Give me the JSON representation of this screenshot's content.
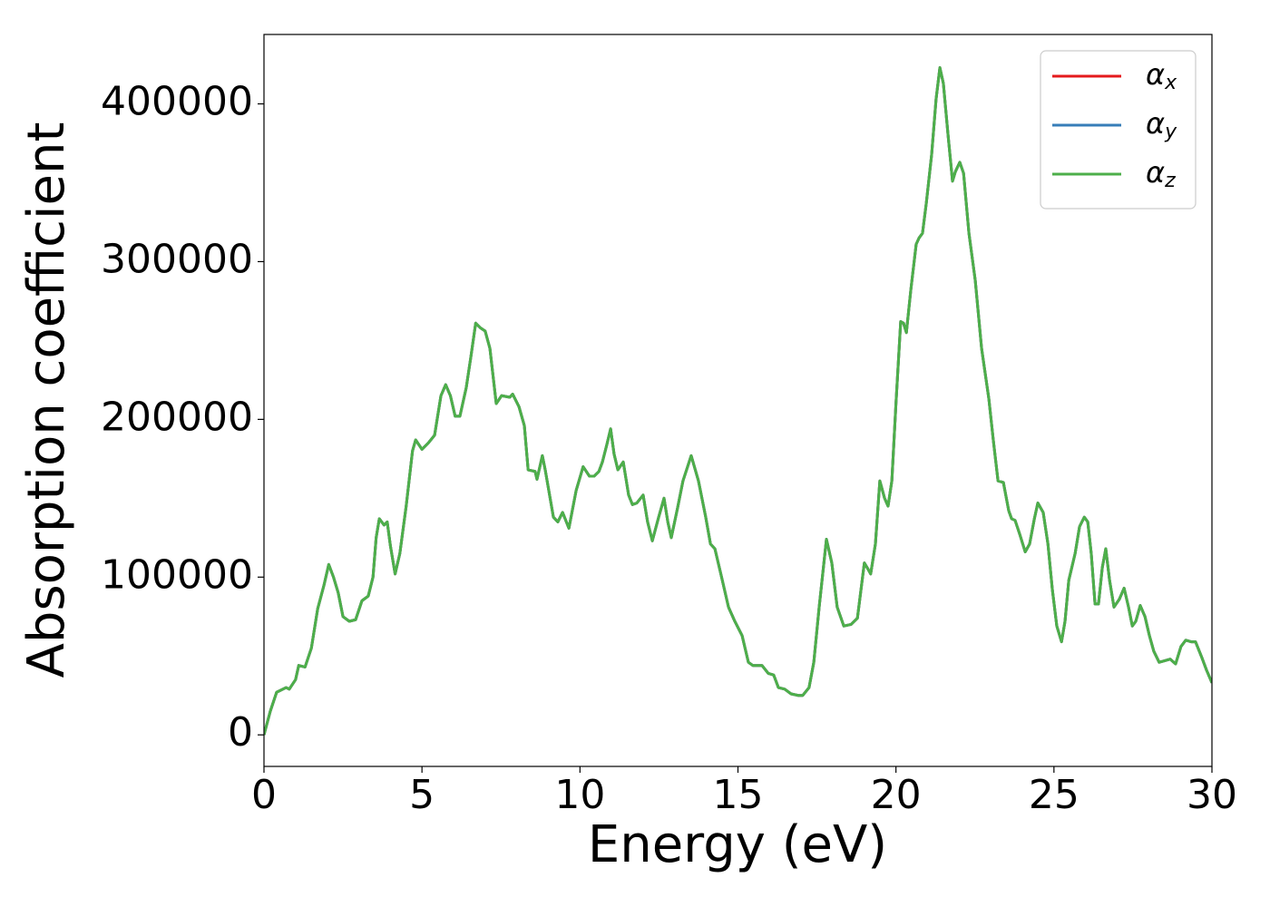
{
  "chart_data": {
    "type": "line",
    "x_label": "Energy (eV)",
    "y_label": "Absorption coefficient",
    "xlim": [
      0,
      30
    ],
    "ylim": [
      -20000,
      444000
    ],
    "xticks": [
      0,
      5,
      10,
      15,
      20,
      25,
      30
    ],
    "yticks": [
      0,
      100000,
      200000,
      300000,
      400000
    ],
    "legend": "upper right",
    "grid": false,
    "x": [
      0,
      0.2,
      0.4,
      0.7,
      0.8,
      1.0,
      1.1,
      1.3,
      1.5,
      1.7,
      1.9,
      2.05,
      2.2,
      2.35,
      2.5,
      2.7,
      2.9,
      3.1,
      3.3,
      3.45,
      3.55,
      3.65,
      3.8,
      3.9,
      4.0,
      4.15,
      4.3,
      4.5,
      4.7,
      4.8,
      5.0,
      5.2,
      5.4,
      5.6,
      5.75,
      5.9,
      6.05,
      6.2,
      6.4,
      6.55,
      6.7,
      6.85,
      7.0,
      7.15,
      7.35,
      7.52,
      7.78,
      7.87,
      8.07,
      8.24,
      8.36,
      8.58,
      8.64,
      8.81,
      8.9,
      9.16,
      9.3,
      9.45,
      9.65,
      9.88,
      10.1,
      10.3,
      10.45,
      10.6,
      10.71,
      10.85,
      10.97,
      11.08,
      11.2,
      11.37,
      11.54,
      11.66,
      11.8,
      12.0,
      12.14,
      12.29,
      12.49,
      12.66,
      12.78,
      12.89,
      13.09,
      13.26,
      13.52,
      13.75,
      13.98,
      14.13,
      14.27,
      14.47,
      14.7,
      14.9,
      15.13,
      15.33,
      15.47,
      15.76,
      15.96,
      16.13,
      16.28,
      16.48,
      16.68,
      16.91,
      17.05,
      17.25,
      17.4,
      17.57,
      17.8,
      17.97,
      18.14,
      18.35,
      18.58,
      18.78,
      19.0,
      19.09,
      19.2,
      19.35,
      19.49,
      19.64,
      19.75,
      19.87,
      20.0,
      20.15,
      20.24,
      20.33,
      20.47,
      20.64,
      20.73,
      20.84,
      20.96,
      21.13,
      21.27,
      21.39,
      21.5,
      21.65,
      21.79,
      21.88,
      22.02,
      22.14,
      22.31,
      22.51,
      22.71,
      22.94,
      23.08,
      23.23,
      23.4,
      23.57,
      23.66,
      23.77,
      23.92,
      24.09,
      24.23,
      24.38,
      24.49,
      24.66,
      24.81,
      24.95,
      25.09,
      25.24,
      25.35,
      25.47,
      25.67,
      25.81,
      25.96,
      26.07,
      26.18,
      26.3,
      26.41,
      26.53,
      26.64,
      26.76,
      26.9,
      27.07,
      27.22,
      27.36,
      27.48,
      27.59,
      27.73,
      27.88,
      28.02,
      28.16,
      28.33,
      28.51,
      28.68,
      28.85,
      29.02,
      29.17,
      29.34,
      29.48,
      29.68,
      29.83,
      30.0
    ],
    "series": [
      {
        "name": "αx",
        "color": "#e41a1c",
        "values": [
          0,
          15000,
          27000,
          30000,
          29000,
          35000,
          44000,
          43000,
          55000,
          80000,
          95000,
          108000,
          100000,
          90000,
          75000,
          72000,
          73000,
          85000,
          88000,
          100000,
          125000,
          137000,
          133000,
          135000,
          120000,
          102000,
          115000,
          145000,
          180000,
          187000,
          181000,
          185000,
          190000,
          215000,
          222000,
          215000,
          202000,
          202000,
          220000,
          240000,
          261000,
          258000,
          256000,
          245000,
          210000,
          215000,
          214000,
          216000,
          208000,
          196000,
          168000,
          167000,
          162000,
          177000,
          168000,
          138000,
          135000,
          141000,
          131000,
          155000,
          170000,
          164000,
          164000,
          167000,
          173000,
          184000,
          194000,
          178000,
          168000,
          173000,
          152000,
          146000,
          147000,
          152000,
          135000,
          123000,
          138000,
          150000,
          135000,
          125000,
          144000,
          161000,
          177000,
          161000,
          138000,
          121000,
          118000,
          101000,
          81000,
          72000,
          63000,
          46000,
          44000,
          44000,
          39000,
          38000,
          30000,
          29000,
          26000,
          25000,
          25000,
          30000,
          46000,
          81000,
          124000,
          109000,
          81000,
          69000,
          70000,
          74000,
          109000,
          106000,
          102000,
          121000,
          161000,
          150000,
          145000,
          161000,
          210000,
          262000,
          261000,
          255000,
          282000,
          311000,
          315000,
          318000,
          337000,
          368000,
          403000,
          423000,
          413000,
          380000,
          351000,
          357000,
          363000,
          356000,
          318000,
          288000,
          245000,
          213000,
          187000,
          161000,
          160000,
          142000,
          137000,
          136000,
          127000,
          116000,
          121000,
          137000,
          147000,
          141000,
          121000,
          92000,
          69000,
          59000,
          72000,
          98000,
          115000,
          132000,
          138000,
          135000,
          115000,
          83000,
          83000,
          106000,
          118000,
          98000,
          81000,
          86000,
          93000,
          81000,
          69000,
          72000,
          82000,
          75000,
          63000,
          53000,
          46000,
          47000,
          48000,
          45000,
          56000,
          60000,
          59000,
          59000,
          49000,
          41000,
          33000
        ]
      },
      {
        "name": "αy",
        "color": "#377eb8",
        "values": [
          0,
          15000,
          27000,
          30000,
          29000,
          35000,
          44000,
          43000,
          55000,
          80000,
          95000,
          108000,
          100000,
          90000,
          75000,
          72000,
          73000,
          85000,
          88000,
          100000,
          125000,
          137000,
          133000,
          135000,
          120000,
          102000,
          115000,
          145000,
          180000,
          187000,
          181000,
          185000,
          190000,
          215000,
          222000,
          215000,
          202000,
          202000,
          220000,
          240000,
          261000,
          258000,
          256000,
          245000,
          210000,
          215000,
          214000,
          216000,
          208000,
          196000,
          168000,
          167000,
          162000,
          177000,
          168000,
          138000,
          135000,
          141000,
          131000,
          155000,
          170000,
          164000,
          164000,
          167000,
          173000,
          184000,
          194000,
          178000,
          168000,
          173000,
          152000,
          146000,
          147000,
          152000,
          135000,
          123000,
          138000,
          150000,
          135000,
          125000,
          144000,
          161000,
          177000,
          161000,
          138000,
          121000,
          118000,
          101000,
          81000,
          72000,
          63000,
          46000,
          44000,
          44000,
          39000,
          38000,
          30000,
          29000,
          26000,
          25000,
          25000,
          30000,
          46000,
          81000,
          124000,
          109000,
          81000,
          69000,
          70000,
          74000,
          109000,
          106000,
          102000,
          121000,
          161000,
          150000,
          145000,
          161000,
          210000,
          262000,
          261000,
          255000,
          282000,
          311000,
          315000,
          318000,
          337000,
          368000,
          403000,
          423000,
          413000,
          380000,
          351000,
          357000,
          363000,
          356000,
          318000,
          288000,
          245000,
          213000,
          187000,
          161000,
          160000,
          142000,
          137000,
          136000,
          127000,
          116000,
          121000,
          137000,
          147000,
          141000,
          121000,
          92000,
          69000,
          59000,
          72000,
          98000,
          115000,
          132000,
          138000,
          135000,
          115000,
          83000,
          83000,
          106000,
          118000,
          98000,
          81000,
          86000,
          93000,
          81000,
          69000,
          72000,
          82000,
          75000,
          63000,
          53000,
          46000,
          47000,
          48000,
          45000,
          56000,
          60000,
          59000,
          59000,
          49000,
          41000,
          33000
        ]
      },
      {
        "name": "αz",
        "color": "#4daf4a",
        "values": [
          0,
          15000,
          27000,
          30000,
          29000,
          35000,
          44000,
          43000,
          55000,
          80000,
          95000,
          108000,
          100000,
          90000,
          75000,
          72000,
          73000,
          85000,
          88000,
          100000,
          125000,
          137000,
          133000,
          135000,
          120000,
          102000,
          115000,
          145000,
          180000,
          187000,
          181000,
          185000,
          190000,
          215000,
          222000,
          215000,
          202000,
          202000,
          220000,
          240000,
          261000,
          258000,
          256000,
          245000,
          210000,
          215000,
          214000,
          216000,
          208000,
          196000,
          168000,
          167000,
          162000,
          177000,
          168000,
          138000,
          135000,
          141000,
          131000,
          155000,
          170000,
          164000,
          164000,
          167000,
          173000,
          184000,
          194000,
          178000,
          168000,
          173000,
          152000,
          146000,
          147000,
          152000,
          135000,
          123000,
          138000,
          150000,
          135000,
          125000,
          144000,
          161000,
          177000,
          161000,
          138000,
          121000,
          118000,
          101000,
          81000,
          72000,
          63000,
          46000,
          44000,
          44000,
          39000,
          38000,
          30000,
          29000,
          26000,
          25000,
          25000,
          30000,
          46000,
          81000,
          124000,
          109000,
          81000,
          69000,
          70000,
          74000,
          109000,
          106000,
          102000,
          121000,
          161000,
          150000,
          145000,
          161000,
          210000,
          262000,
          261000,
          255000,
          282000,
          311000,
          315000,
          318000,
          337000,
          368000,
          403000,
          423000,
          413000,
          380000,
          351000,
          357000,
          363000,
          356000,
          318000,
          288000,
          245000,
          213000,
          187000,
          161000,
          160000,
          142000,
          137000,
          136000,
          127000,
          116000,
          121000,
          137000,
          147000,
          141000,
          121000,
          92000,
          69000,
          59000,
          72000,
          98000,
          115000,
          132000,
          138000,
          135000,
          115000,
          83000,
          83000,
          106000,
          118000,
          98000,
          81000,
          86000,
          93000,
          81000,
          69000,
          72000,
          82000,
          75000,
          63000,
          53000,
          46000,
          47000,
          48000,
          45000,
          56000,
          60000,
          59000,
          59000,
          49000,
          41000,
          33000
        ]
      }
    ]
  }
}
